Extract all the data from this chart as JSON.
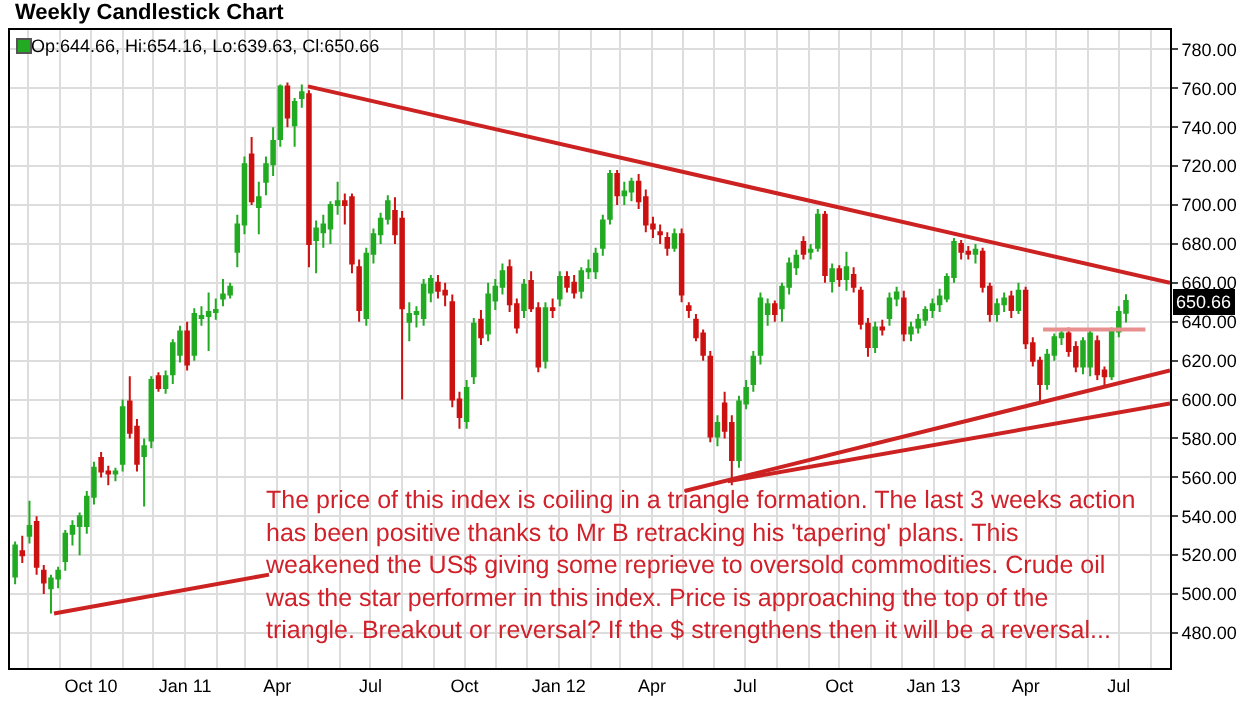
{
  "chart_data": {
    "type": "candlestick",
    "title": "Weekly Candlestick Chart",
    "annotations": [
      "Op:644.66, Hi:654.16, Lo:639.63, Cl:650.66",
      "The price of this index is coiling in a triangle formation. The last 3 weeks action\nhas been positive thanks to Mr B retracking his 'tapering' plans. This\nweakened the US$ giving some reprieve to oversold commodities. Crude oil\nwas the star performer in this index. Price is approaching the top of the\ntriangle. Breakout or reversal? If the $ strengthens then it will be a reversal...",
      "650.66"
    ],
    "colors": [
      "#22aa22",
      "#cc1111",
      "#22aa22",
      "#cc1111",
      "#cc1111",
      "#22aa22",
      "#22aa22",
      "#22aa22",
      "#22aa22",
      "#22aa22",
      "#22aa22",
      "#22aa22",
      "#cc1111",
      "#cc1111",
      "#22aa22",
      "#22aa22",
      "#cc1111",
      "#cc1111",
      "#22aa22",
      "#22aa22",
      "#cc1111",
      "#22aa22",
      "#22aa22",
      "#22aa22",
      "#cc1111",
      "#22aa22",
      "#22aa22",
      "#22aa22",
      "#22aa22",
      "#22aa22",
      "#22aa22",
      "#22aa22",
      "#22aa22",
      "#cc1111",
      "#22aa22",
      "#22aa22",
      "#22aa22",
      "#22aa22",
      "#cc1111",
      "#22aa22",
      "#22aa22",
      "#cc1111",
      "#22aa22",
      "#22aa22",
      "#22aa22",
      "#22aa22",
      "#cc1111",
      "#cc1111",
      "#cc1111",
      "#22aa22",
      "#22aa22",
      "#22aa22",
      "#22aa22",
      "#cc1111",
      "#cc1111",
      "#22aa22",
      "#22aa22",
      "#22aa22",
      "#22aa22",
      "#cc1111",
      "#cc1111",
      "#cc1111",
      "#cc1111",
      "#22aa22",
      "#22aa22",
      "#cc1111",
      "#22aa22",
      "#22aa22",
      "#22aa22",
      "#cc1111",
      "#cc1111",
      "#22aa22",
      "#cc1111",
      "#cc1111",
      "#22aa22",
      "#cc1111",
      "#22aa22",
      "#cc1111",
      "#cc1111",
      "#22aa22",
      "#22aa22",
      "#22aa22",
      "#22aa22",
      "#22aa22",
      "#cc1111",
      "#22aa22",
      "#22aa22",
      "#cc1111",
      "#cc1111",
      "#cc1111",
      "#cc1111",
      "#cc1111",
      "#22aa22",
      "#cc1111",
      "#cc1111",
      "#cc1111",
      "#cc1111",
      "#cc1111",
      "#22aa22",
      "#cc1111",
      "#cc1111",
      "#22aa22",
      "#22aa22",
      "#22aa22",
      "#22aa22",
      "#22aa22",
      "#cc1111",
      "#22aa22",
      "#22aa22",
      "#22aa22",
      "#cc1111",
      "#22aa22",
      "#22aa22",
      "#cc1111",
      "#22aa22",
      "#cc1111",
      "#22aa22",
      "#cc1111",
      "#cc1111",
      "#cc1111",
      "#22aa22",
      "#cc1111",
      "#22aa22",
      "#22aa22",
      "#cc1111",
      "#22aa22",
      "#22aa22",
      "#22aa22",
      "#22aa22",
      "#22aa22",
      "#22aa22",
      "#22aa22",
      "#cc1111",
      "#cc1111",
      "#22aa22",
      "#cc1111",
      "#cc1111",
      "#22aa22",
      "#22aa22",
      "#cc1111",
      "#22aa22",
      "#cc1111",
      "#cc1111",
      "#cc1111",
      "#22aa22",
      "#22aa22",
      "#22aa22",
      "#cc1111",
      "#cc1111",
      "#22aa22",
      "#22aa22",
      "#cc1111",
      "#cc1111",
      "#22aa22",
      "#22aa22",
      "#22aa22"
    ],
    "x": [
      "2010-07-19",
      "2010-07-26",
      "2010-08-02",
      "2010-08-09",
      "2010-08-16",
      "2010-08-23",
      "2010-08-30",
      "2010-09-06",
      "2010-09-13",
      "2010-09-20",
      "2010-09-27",
      "2010-10-04",
      "2010-10-11",
      "2010-10-18",
      "2010-10-25",
      "2010-11-01",
      "2010-11-08",
      "2010-11-15",
      "2010-11-22",
      "2010-11-29",
      "2010-12-06",
      "2010-12-13",
      "2010-12-20",
      "2010-12-27",
      "2011-01-03",
      "2011-01-10",
      "2011-01-17",
      "2011-01-24",
      "2011-01-31",
      "2011-02-07",
      "2011-02-14",
      "2011-02-21",
      "2011-02-28",
      "2011-03-07",
      "2011-03-14",
      "2011-03-21",
      "2011-03-28",
      "2011-04-04",
      "2011-04-11",
      "2011-04-18",
      "2011-04-25",
      "2011-05-02",
      "2011-05-09",
      "2011-05-16",
      "2011-05-23",
      "2011-05-30",
      "2011-06-06",
      "2011-06-13",
      "2011-06-20",
      "2011-06-27",
      "2011-07-04",
      "2011-07-11",
      "2011-07-18",
      "2011-07-25",
      "2011-08-01",
      "2011-08-08",
      "2011-08-15",
      "2011-08-22",
      "2011-08-29",
      "2011-09-05",
      "2011-09-12",
      "2011-09-19",
      "2011-09-26",
      "2011-10-03",
      "2011-10-10",
      "2011-10-17",
      "2011-10-24",
      "2011-10-31",
      "2011-11-07",
      "2011-11-14",
      "2011-11-21",
      "2011-11-28",
      "2011-12-05",
      "2011-12-12",
      "2011-12-19",
      "2011-12-26",
      "2012-01-02",
      "2012-01-09",
      "2012-01-16",
      "2012-01-23",
      "2012-01-30",
      "2012-02-06",
      "2012-02-13",
      "2012-02-20",
      "2012-02-27",
      "2012-03-05",
      "2012-03-12",
      "2012-03-19",
      "2012-03-26",
      "2012-04-02",
      "2012-04-09",
      "2012-04-16",
      "2012-04-23",
      "2012-04-30",
      "2012-05-07",
      "2012-05-14",
      "2012-05-21",
      "2012-05-28",
      "2012-06-04",
      "2012-06-11",
      "2012-06-18",
      "2012-06-25",
      "2012-07-02",
      "2012-07-09",
      "2012-07-16",
      "2012-07-23",
      "2012-07-30",
      "2012-08-06",
      "2012-08-13",
      "2012-08-20",
      "2012-08-27",
      "2012-09-03",
      "2012-09-10",
      "2012-09-17",
      "2012-09-24",
      "2012-10-01",
      "2012-10-08",
      "2012-10-15",
      "2012-10-22",
      "2012-10-29",
      "2012-11-05",
      "2012-11-12",
      "2012-11-19",
      "2012-11-26",
      "2012-12-03",
      "2012-12-10",
      "2012-12-17",
      "2012-12-24",
      "2012-12-31",
      "2013-01-07",
      "2013-01-14",
      "2013-01-21",
      "2013-01-28",
      "2013-02-04",
      "2013-02-11",
      "2013-02-18",
      "2013-02-25",
      "2013-03-04",
      "2013-03-11",
      "2013-03-18",
      "2013-03-25",
      "2013-04-01",
      "2013-04-08",
      "2013-04-15",
      "2013-04-22",
      "2013-04-29",
      "2013-05-06",
      "2013-05-13",
      "2013-05-20",
      "2013-05-27",
      "2013-06-03",
      "2013-06-10",
      "2013-06-17",
      "2013-06-24",
      "2013-07-01",
      "2013-07-08"
    ],
    "ohlc": [
      [
        509,
        527,
        505,
        525
      ],
      [
        522,
        530,
        516,
        520
      ],
      [
        530,
        548,
        526,
        535
      ],
      [
        537,
        540,
        510,
        514
      ],
      [
        512,
        515,
        500,
        506
      ],
      [
        503,
        510,
        490,
        508
      ],
      [
        508,
        514,
        503,
        512
      ],
      [
        517,
        533,
        512,
        531
      ],
      [
        531,
        538,
        525,
        535
      ],
      [
        535,
        542,
        520,
        540
      ],
      [
        535,
        553,
        531,
        550
      ],
      [
        550,
        568,
        546,
        565
      ],
      [
        570,
        573,
        560,
        563
      ],
      [
        563,
        566,
        556,
        562
      ],
      [
        562,
        565,
        558,
        563
      ],
      [
        567,
        600,
        563,
        596
      ],
      [
        599,
        612,
        580,
        583
      ],
      [
        586,
        590,
        563,
        567
      ],
      [
        571,
        580,
        545,
        576
      ],
      [
        579,
        612,
        575,
        610
      ],
      [
        612,
        614,
        604,
        606
      ],
      [
        606,
        615,
        603,
        612
      ],
      [
        613,
        631,
        608,
        629
      ],
      [
        623,
        638,
        619,
        635
      ],
      [
        635,
        640,
        615,
        618
      ],
      [
        623,
        647,
        620,
        644
      ],
      [
        642,
        648,
        638,
        643
      ],
      [
        643,
        655,
        625,
        645
      ],
      [
        645,
        652,
        641,
        646
      ],
      [
        652,
        662,
        648,
        654
      ],
      [
        654,
        660,
        652,
        658
      ],
      [
        676,
        695,
        668,
        690
      ],
      [
        690,
        725,
        685,
        721
      ],
      [
        726,
        735,
        700,
        702
      ],
      [
        699,
        712,
        685,
        704
      ],
      [
        712,
        725,
        705,
        721
      ],
      [
        721,
        740,
        715,
        733
      ],
      [
        734,
        762,
        730,
        761
      ],
      [
        761,
        763,
        740,
        745
      ],
      [
        741,
        755,
        730,
        753
      ],
      [
        755,
        762,
        750,
        758
      ],
      [
        757,
        759,
        668,
        680
      ],
      [
        682,
        692,
        665,
        688
      ],
      [
        686,
        695,
        678,
        690
      ],
      [
        688,
        702,
        680,
        700
      ],
      [
        700,
        712,
        695,
        702
      ],
      [
        702,
        706,
        690,
        700
      ],
      [
        704,
        706,
        665,
        670
      ],
      [
        668,
        672,
        640,
        646
      ],
      [
        642,
        678,
        638,
        675
      ],
      [
        675,
        688,
        670,
        685
      ],
      [
        685,
        696,
        680,
        693
      ],
      [
        693,
        705,
        690,
        702
      ],
      [
        697,
        704,
        680,
        685
      ],
      [
        693,
        697,
        600,
        647
      ],
      [
        640,
        650,
        630,
        644
      ],
      [
        644,
        648,
        637,
        645
      ],
      [
        642,
        662,
        638,
        659
      ],
      [
        655,
        664,
        650,
        662
      ],
      [
        660,
        664,
        652,
        656
      ],
      [
        656,
        660,
        648,
        654
      ],
      [
        650,
        654,
        596,
        600
      ],
      [
        600,
        604,
        585,
        591
      ],
      [
        589,
        610,
        585,
        606
      ],
      [
        612,
        642,
        608,
        639
      ],
      [
        641,
        646,
        628,
        632
      ],
      [
        634,
        660,
        630,
        654
      ],
      [
        651,
        662,
        646,
        658
      ],
      [
        658,
        670,
        654,
        666
      ],
      [
        668,
        672,
        645,
        649
      ],
      [
        649,
        652,
        634,
        637
      ],
      [
        646,
        662,
        642,
        659
      ],
      [
        661,
        666,
        645,
        647
      ],
      [
        647,
        650,
        614,
        617
      ],
      [
        620,
        650,
        616,
        647
      ],
      [
        647,
        652,
        642,
        646
      ],
      [
        652,
        666,
        648,
        663
      ],
      [
        663,
        666,
        655,
        658
      ],
      [
        660,
        664,
        652,
        655
      ],
      [
        656,
        668,
        652,
        666
      ],
      [
        666,
        672,
        662,
        667
      ],
      [
        666,
        678,
        662,
        675
      ],
      [
        678,
        695,
        674,
        692
      ],
      [
        693,
        718,
        690,
        716
      ],
      [
        716,
        718,
        700,
        705
      ],
      [
        705,
        712,
        700,
        707
      ],
      [
        707,
        714,
        702,
        712
      ],
      [
        712,
        716,
        698,
        702
      ],
      [
        704,
        708,
        686,
        690
      ],
      [
        690,
        694,
        683,
        688
      ],
      [
        686,
        690,
        680,
        685
      ],
      [
        683,
        686,
        674,
        678
      ],
      [
        678,
        688,
        676,
        685
      ],
      [
        685,
        688,
        650,
        654
      ],
      [
        648,
        650,
        642,
        646
      ],
      [
        641,
        644,
        630,
        632
      ],
      [
        634,
        636,
        620,
        623
      ],
      [
        622,
        625,
        578,
        581
      ],
      [
        581,
        592,
        576,
        588
      ],
      [
        598,
        604,
        580,
        584
      ],
      [
        588,
        592,
        556,
        569
      ],
      [
        569,
        602,
        565,
        599
      ],
      [
        598,
        610,
        595,
        606
      ],
      [
        608,
        625,
        604,
        622
      ],
      [
        623,
        655,
        618,
        652
      ],
      [
        644,
        652,
        638,
        649
      ],
      [
        649,
        651,
        640,
        644
      ],
      [
        647,
        660,
        640,
        658
      ],
      [
        658,
        673,
        654,
        670
      ],
      [
        668,
        677,
        664,
        674
      ],
      [
        681,
        684,
        672,
        675
      ],
      [
        676,
        680,
        672,
        677
      ],
      [
        678,
        698,
        676,
        695
      ],
      [
        695,
        697,
        660,
        664
      ],
      [
        661,
        670,
        655,
        667
      ],
      [
        667,
        669,
        658,
        662
      ],
      [
        662,
        676,
        656,
        668
      ],
      [
        664,
        668,
        655,
        658
      ],
      [
        656,
        658,
        636,
        639
      ],
      [
        639,
        642,
        622,
        627
      ],
      [
        627,
        640,
        624,
        637
      ],
      [
        637,
        641,
        633,
        636
      ],
      [
        642,
        655,
        638,
        652
      ],
      [
        652,
        658,
        648,
        655
      ],
      [
        652,
        656,
        630,
        634
      ],
      [
        634,
        640,
        630,
        637
      ],
      [
        637,
        644,
        634,
        641
      ],
      [
        641,
        648,
        638,
        646
      ],
      [
        646,
        652,
        642,
        649
      ],
      [
        649,
        657,
        645,
        653
      ],
      [
        652,
        665,
        650,
        663
      ],
      [
        663,
        683,
        660,
        681
      ],
      [
        680,
        682,
        672,
        676
      ],
      [
        676,
        679,
        672,
        675
      ],
      [
        675,
        680,
        670,
        677
      ],
      [
        676,
        678,
        655,
        658
      ],
      [
        658,
        660,
        640,
        644
      ],
      [
        644,
        652,
        640,
        649
      ],
      [
        649,
        655,
        645,
        652
      ],
      [
        653,
        656,
        642,
        646
      ],
      [
        646,
        660,
        644,
        656
      ],
      [
        656,
        658,
        626,
        629
      ],
      [
        629,
        632,
        617,
        620
      ],
      [
        620,
        622,
        598,
        608
      ],
      [
        608,
        626,
        605,
        623
      ],
      [
        623,
        634,
        620,
        632
      ],
      [
        632,
        636,
        628,
        634
      ],
      [
        634,
        637,
        622,
        625
      ],
      [
        627,
        630,
        614,
        617
      ],
      [
        617,
        632,
        613,
        630
      ],
      [
        617,
        636,
        612,
        634
      ],
      [
        630,
        633,
        610,
        613
      ],
      [
        615,
        617,
        607,
        612
      ],
      [
        612,
        637,
        610,
        635
      ],
      [
        635,
        648,
        632,
        645
      ],
      [
        644.66,
        654.16,
        639.63,
        650.66
      ]
    ],
    "series": [
      {
        "type": "line",
        "color": "#cc2222",
        "x": [
          "2011-05-01",
          "2013-08-20"
        ],
        "values": [
          761,
          660
        ]
      },
      {
        "type": "line",
        "color": "#cc2222",
        "x": [
          "2010-08-26",
          "2011-03-24"
        ],
        "values": [
          490,
          510
        ]
      },
      {
        "type": "line",
        "color": "#cc2222",
        "x": [
          "2012-05-03",
          "2013-08-20"
        ],
        "values": [
          553,
          615
        ]
      },
      {
        "type": "line",
        "color": "#cc2222",
        "x": [
          "2012-06-14",
          "2013-08-20"
        ],
        "values": [
          558,
          598
        ]
      },
      {
        "type": "line",
        "color": "#e89090",
        "x": [
          "2013-04-18",
          "2013-07-27"
        ],
        "values": [
          636,
          636
        ]
      }
    ],
    "xlim": [
      "2010-07-14",
      "2013-08-20"
    ],
    "xticks": [
      {
        "value": "2010-08-01",
        "label": null
      },
      {
        "value": "2010-09-01",
        "label": null
      },
      {
        "value": "2010-10-01",
        "label": "Oct 10"
      },
      {
        "value": "2010-11-01",
        "label": null
      },
      {
        "value": "2010-12-01",
        "label": null
      },
      {
        "value": "2011-01-01",
        "label": "Jan 11"
      },
      {
        "value": "2011-02-01",
        "label": null
      },
      {
        "value": "2011-03-01",
        "label": null
      },
      {
        "value": "2011-04-01",
        "label": "Apr"
      },
      {
        "value": "2011-05-01",
        "label": null
      },
      {
        "value": "2011-06-01",
        "label": null
      },
      {
        "value": "2011-07-01",
        "label": "Jul"
      },
      {
        "value": "2011-08-01",
        "label": null
      },
      {
        "value": "2011-09-01",
        "label": null
      },
      {
        "value": "2011-10-01",
        "label": "Oct"
      },
      {
        "value": "2011-11-01",
        "label": null
      },
      {
        "value": "2011-12-01",
        "label": null
      },
      {
        "value": "2012-01-01",
        "label": "Jan 12"
      },
      {
        "value": "2012-02-01",
        "label": null
      },
      {
        "value": "2012-03-01",
        "label": null
      },
      {
        "value": "2012-04-01",
        "label": "Apr"
      },
      {
        "value": "2012-05-01",
        "label": null
      },
      {
        "value": "2012-06-01",
        "label": null
      },
      {
        "value": "2012-07-01",
        "label": "Jul"
      },
      {
        "value": "2012-08-01",
        "label": null
      },
      {
        "value": "2012-09-01",
        "label": null
      },
      {
        "value": "2012-10-01",
        "label": "Oct"
      },
      {
        "value": "2012-11-01",
        "label": null
      },
      {
        "value": "2012-12-01",
        "label": null
      },
      {
        "value": "2013-01-01",
        "label": "Jan 13"
      },
      {
        "value": "2013-02-01",
        "label": null
      },
      {
        "value": "2013-03-01",
        "label": null
      },
      {
        "value": "2013-04-01",
        "label": "Apr"
      },
      {
        "value": "2013-05-01",
        "label": null
      },
      {
        "value": "2013-06-01",
        "label": null
      },
      {
        "value": "2013-07-01",
        "label": "Jul"
      },
      {
        "value": "2013-08-01",
        "label": null
      }
    ],
    "ylim": [
      462,
      790
    ],
    "yticks": [
      {
        "value": 480,
        "label": "480.00"
      },
      {
        "value": 500,
        "label": "500.00"
      },
      {
        "value": 520,
        "label": "520.00"
      },
      {
        "value": 540,
        "label": "540.00"
      },
      {
        "value": 560,
        "label": "560.00"
      },
      {
        "value": 580,
        "label": "580.00"
      },
      {
        "value": 600,
        "label": "600.00"
      },
      {
        "value": 620,
        "label": "620.00"
      },
      {
        "value": 640,
        "label": "640.00"
      },
      {
        "value": 660,
        "label": "660.00"
      },
      {
        "value": 680,
        "label": "680.00"
      },
      {
        "value": 700,
        "label": "700.00"
      },
      {
        "value": 720,
        "label": "720.00"
      },
      {
        "value": 740,
        "label": "740.00"
      },
      {
        "value": 760,
        "label": "760.00"
      },
      {
        "value": 780,
        "label": "780.00"
      }
    ],
    "grid": true
  }
}
